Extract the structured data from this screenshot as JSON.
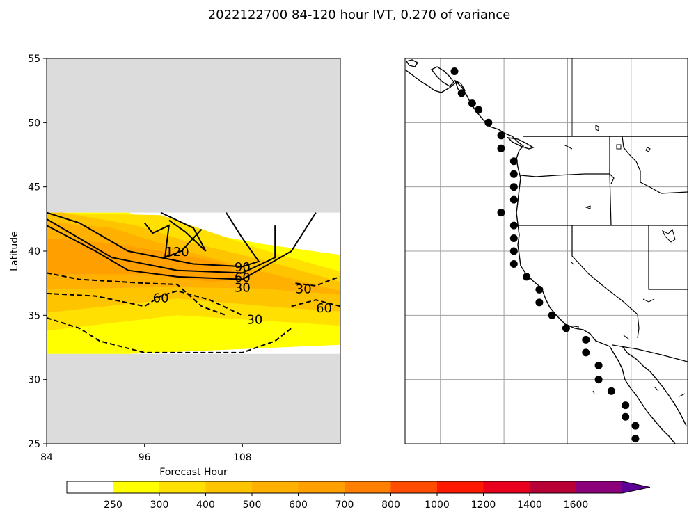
{
  "title": "2022122700 84-120 hour IVT, 0.270 of variance",
  "chart_data": [
    {
      "type": "contour",
      "panel": "hovmoller",
      "xlabel": "Forecast Hour",
      "ylabel": "Latitude",
      "xlim": [
        84,
        120
      ],
      "ylim": [
        25,
        55
      ],
      "xticks": [
        84,
        96,
        108
      ],
      "yticks": [
        25,
        30,
        35,
        40,
        45,
        50,
        55
      ],
      "valid_lat_range": [
        32,
        43
      ],
      "missing_color": "#dcdcdc",
      "filled_bands": [
        {
          "level": 250,
          "color": "#ffff00",
          "polygon": [
            [
              84,
              32
            ],
            [
              94,
              32
            ],
            [
              120,
              32.7
            ],
            [
              120,
              39.7
            ],
            [
              110,
              40.6
            ],
            [
              100,
              41.8
            ],
            [
              94,
              43
            ],
            [
              84,
              43
            ]
          ]
        },
        {
          "level": 300,
          "color": "#ffe000",
          "polygon": [
            [
              84,
              33.8
            ],
            [
              100,
              35
            ],
            [
              120,
              34.2
            ],
            [
              120,
              38.4
            ],
            [
              110,
              40.2
            ],
            [
              104,
              41.5
            ],
            [
              98,
              42.8
            ],
            [
              84,
              43
            ]
          ]
        },
        {
          "level": 400,
          "color": "#ffc400",
          "polygon": [
            [
              84,
              35.2
            ],
            [
              100,
              36.3
            ],
            [
              113,
              35.6
            ],
            [
              120,
              35.3
            ],
            [
              120,
              37.6
            ],
            [
              110,
              39.4
            ],
            [
              102,
              40.6
            ],
            [
              95,
              42
            ],
            [
              86,
              43
            ],
            [
              84,
              43
            ]
          ]
        },
        {
          "level": 500,
          "color": "#ffb000",
          "polygon": [
            [
              84,
              37
            ],
            [
              98,
              37.2
            ],
            [
              110,
              37.1
            ],
            [
              120,
              36.6
            ],
            [
              120,
              36.9
            ],
            [
              108,
              38.8
            ],
            [
              100,
              40.2
            ],
            [
              92,
              41.8
            ],
            [
              84,
              42.3
            ]
          ]
        },
        {
          "level": 600,
          "color": "#ffa000",
          "polygon": [
            [
              84,
              38.2
            ],
            [
              96,
              38.2
            ],
            [
              104,
              37.6
            ],
            [
              108,
              37.8
            ],
            [
              106,
              39
            ],
            [
              100,
              39.8
            ],
            [
              92,
              40.6
            ],
            [
              84,
              41
            ]
          ]
        }
      ],
      "contours": [
        {
          "level": 30,
          "style": "solid",
          "points": [
            [
              84,
              42
            ],
            [
              90,
              40
            ],
            [
              94,
              38.5
            ],
            [
              100,
              38
            ],
            [
              108,
              37.8
            ],
            [
              114,
              40
            ],
            [
              117,
              43
            ]
          ]
        },
        {
          "level": 60,
          "style": "solid",
          "points": [
            [
              84,
              42.5
            ],
            [
              88,
              41
            ],
            [
              92,
              39.5
            ],
            [
              100,
              38.5
            ],
            [
              108,
              38.3
            ],
            [
              112,
              39.5
            ],
            [
              112,
              42
            ]
          ]
        },
        {
          "level": 90,
          "style": "solid",
          "points": [
            [
              84,
              43
            ],
            [
              88,
              42.2
            ],
            [
              94,
              40
            ],
            [
              102,
              39
            ],
            [
              108,
              38.8
            ],
            [
              110,
              39.2
            ],
            [
              108,
              41
            ],
            [
              106,
              43
            ]
          ]
        },
        {
          "level": 120,
          "style": "solid",
          "points": [
            [
              98,
              43
            ],
            [
              102,
              41.8
            ],
            [
              103.5,
              40
            ],
            [
              101,
              41.5
            ],
            [
              99,
              42.4
            ]
          ]
        },
        {
          "level": 120,
          "style": "solid",
          "points": [
            [
              96,
              42.2
            ],
            [
              97,
              41.4
            ],
            [
              99,
              42
            ],
            [
              98.5,
              39.5
            ],
            [
              100.5,
              40
            ],
            [
              103,
              41.7
            ]
          ]
        },
        {
          "level": -30,
          "style": "dashed",
          "points": [
            [
              84,
              34.8
            ],
            [
              88,
              34
            ],
            [
              90.5,
              33
            ],
            [
              96,
              32.1
            ],
            [
              108,
              32.1
            ],
            [
              112,
              33
            ],
            [
              114,
              34
            ]
          ]
        },
        {
          "level": -30,
          "style": "dashed",
          "points": [
            [
              114.5,
              37.5
            ],
            [
              117,
              37.3
            ],
            [
              119,
              37.8
            ],
            [
              120,
              38
            ]
          ]
        },
        {
          "level": -60,
          "style": "dashed",
          "points": [
            [
              84,
              36.7
            ],
            [
              90,
              36.5
            ],
            [
              96,
              35.7
            ],
            [
              98,
              36.5
            ],
            [
              100,
              36.9
            ],
            [
              104,
              36.2
            ],
            [
              108,
              35
            ]
          ]
        },
        {
          "level": -60,
          "style": "dashed",
          "points": [
            [
              114,
              35.7
            ],
            [
              117,
              36.2
            ],
            [
              120,
              35.7
            ]
          ]
        },
        {
          "level": -90,
          "style": "dashed",
          "points": [
            [
              84,
              38.3
            ],
            [
              88,
              37.8
            ],
            [
              96,
              37.5
            ],
            [
              100,
              37.4
            ],
            [
              103,
              35.7
            ],
            [
              106,
              35
            ]
          ]
        }
      ],
      "contour_labels": [
        {
          "text": "120",
          "x": 100,
          "y": 39.9
        },
        {
          "text": "90",
          "x": 108,
          "y": 38.7
        },
        {
          "text": "60",
          "x": 108,
          "y": 37.9
        },
        {
          "text": "30",
          "x": 108,
          "y": 37.1
        },
        {
          "text": "60",
          "x": 98,
          "y": 36.3
        },
        {
          "text": "30",
          "x": 115.5,
          "y": 37
        },
        {
          "text": "60",
          "x": 118,
          "y": 35.5
        },
        {
          "text": "30",
          "x": 109.5,
          "y": 34.6
        }
      ]
    },
    {
      "type": "map",
      "panel": "west-coast-points",
      "lon_range": [
        -140,
        -100
      ],
      "lat_range": [
        25,
        55
      ],
      "gridlines": true,
      "grid_lons": [
        -135,
        -126,
        -117,
        -108
      ],
      "grid_lats": [
        30,
        35,
        40,
        45,
        50
      ],
      "point_color": "#000000",
      "points": [
        [
          -133,
          54
        ],
        [
          -132,
          52.3
        ],
        [
          -130.5,
          51.5
        ],
        [
          -129.6,
          51
        ],
        [
          -128.2,
          50
        ],
        [
          -126.4,
          49
        ],
        [
          -126.4,
          48
        ],
        [
          -124.6,
          47
        ],
        [
          -124.6,
          46
        ],
        [
          -124.6,
          45
        ],
        [
          -124.6,
          44
        ],
        [
          -126.4,
          43
        ],
        [
          -124.6,
          42
        ],
        [
          -124.6,
          41
        ],
        [
          -124.6,
          40
        ],
        [
          -124.6,
          39
        ],
        [
          -122.8,
          38
        ],
        [
          -121,
          37
        ],
        [
          -121,
          36
        ],
        [
          -119.2,
          35
        ],
        [
          -117.2,
          34
        ],
        [
          -114.4,
          33.1
        ],
        [
          -114.4,
          32.1
        ],
        [
          -112.6,
          31.1
        ],
        [
          -112.6,
          30
        ],
        [
          -110.8,
          29.1
        ],
        [
          -108.8,
          28
        ],
        [
          -108.8,
          27.1
        ],
        [
          -107.4,
          26.4
        ],
        [
          -107.4,
          25.4
        ]
      ]
    }
  ],
  "colorbar": {
    "levels": [
      250,
      300,
      400,
      500,
      600,
      700,
      800,
      1000,
      1200,
      1400,
      1600
    ],
    "colors": [
      "#ffffff",
      "#ffff00",
      "#ffe000",
      "#ffc400",
      "#ffb000",
      "#ffa000",
      "#ff7f00",
      "#ff4c00",
      "#ff1800",
      "#e8001c",
      "#b80036",
      "#8b007a",
      "#5c0096"
    ],
    "extend": "max"
  }
}
